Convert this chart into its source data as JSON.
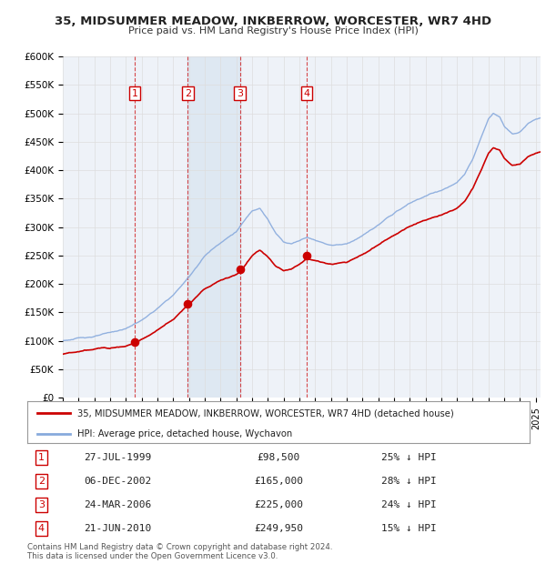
{
  "title": "35, MIDSUMMER MEADOW, INKBERROW, WORCESTER, WR7 4HD",
  "subtitle": "Price paid vs. HM Land Registry's House Price Index (HPI)",
  "ylabel_ticks": [
    "£0",
    "£50K",
    "£100K",
    "£150K",
    "£200K",
    "£250K",
    "£300K",
    "£350K",
    "£400K",
    "£450K",
    "£500K",
    "£550K",
    "£600K"
  ],
  "ytick_values": [
    0,
    50000,
    100000,
    150000,
    200000,
    250000,
    300000,
    350000,
    400000,
    450000,
    500000,
    550000,
    600000
  ],
  "price_paid_color": "#cc0000",
  "hpi_color": "#88aadd",
  "vline_color": "#cc0000",
  "grid_color": "#cccccc",
  "chart_bg": "#eef2f8",
  "legend_label_price": "35, MIDSUMMER MEADOW, INKBERROW, WORCESTER, WR7 4HD (detached house)",
  "legend_label_hpi": "HPI: Average price, detached house, Wychavon",
  "transactions": [
    {
      "num": 1,
      "date": "27-JUL-1999",
      "year": 1999.57,
      "price": 98500,
      "pct": "25%"
    },
    {
      "num": 2,
      "date": "06-DEC-2002",
      "year": 2002.92,
      "price": 165000,
      "pct": "28%"
    },
    {
      "num": 3,
      "date": "24-MAR-2006",
      "year": 2006.23,
      "price": 225000,
      "pct": "24%"
    },
    {
      "num": 4,
      "date": "21-JUN-2010",
      "year": 2010.47,
      "price": 249950,
      "pct": "15%"
    }
  ],
  "table_rows": [
    {
      "num": 1,
      "date": "27-JUL-1999",
      "price": "£98,500",
      "pct": "25% ↓ HPI"
    },
    {
      "num": 2,
      "date": "06-DEC-2002",
      "price": "£165,000",
      "pct": "28% ↓ HPI"
    },
    {
      "num": 3,
      "date": "24-MAR-2006",
      "price": "£225,000",
      "pct": "24% ↓ HPI"
    },
    {
      "num": 4,
      "date": "21-JUN-2010",
      "price": "£249,950",
      "pct": "15% ↓ HPI"
    }
  ],
  "footnote": "Contains HM Land Registry data © Crown copyright and database right 2024.\nThis data is licensed under the Open Government Licence v3.0.",
  "xmin": 1995,
  "xmax": 2025.3,
  "ymin": 0,
  "ymax": 600000,
  "shade_x1": 2002.92,
  "shade_x2": 2006.23
}
